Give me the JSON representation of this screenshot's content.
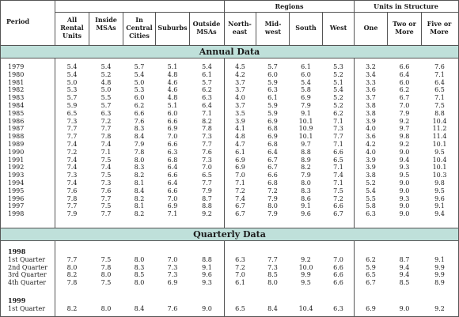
{
  "header": {
    "period": "Period",
    "regions": "Regions",
    "units_in_structure": "Units in Structure",
    "columns": [
      "All Rental Units",
      "Inside MSAs",
      "In Central Cities",
      "Suburbs",
      "Outside MSAs",
      "North-east",
      "Mid-west",
      "South",
      "West",
      "One",
      "Two or More",
      "Five or More"
    ]
  },
  "sections": {
    "annual_title": "Annual Data",
    "quarterly_title": "Quarterly Data"
  },
  "annual_rows": [
    {
      "period": "1979",
      "values": [
        "5.4",
        "5.4",
        "5.7",
        "5.1",
        "5.4",
        "4.5",
        "5.7",
        "6.1",
        "5.3",
        "3.2",
        "6.6",
        "7.6"
      ]
    },
    {
      "period": "1980",
      "values": [
        "5.4",
        "5.2",
        "5.4",
        "4.8",
        "6.1",
        "4.2",
        "6.0",
        "6.0",
        "5.2",
        "3.4",
        "6.4",
        "7.1"
      ]
    },
    {
      "period": "1981",
      "values": [
        "5.0",
        "4.8",
        "5.0",
        "4.6",
        "5.7",
        "3.7",
        "5.9",
        "5.4",
        "5.1",
        "3.3",
        "6.0",
        "6.4"
      ]
    },
    {
      "period": "1982",
      "values": [
        "5.3",
        "5.0",
        "5.3",
        "4.6",
        "6.2",
        "3.7",
        "6.3",
        "5.8",
        "5.4",
        "3.6",
        "6.2",
        "6.5"
      ]
    },
    {
      "period": "1983",
      "values": [
        "5.7",
        "5.5",
        "6.0",
        "4.8",
        "6.3",
        "4.0",
        "6.1",
        "6.9",
        "5.2",
        "3.7",
        "6.7",
        "7.1"
      ]
    },
    {
      "period": "1984",
      "values": [
        "5.9",
        "5.7",
        "6.2",
        "5.1",
        "6.4",
        "3.7",
        "5.9",
        "7.9",
        "5.2",
        "3.8",
        "7.0",
        "7.5"
      ]
    },
    {
      "period": "1985",
      "values": [
        "6.5",
        "6.3",
        "6.6",
        "6.0",
        "7.1",
        "3.5",
        "5.9",
        "9.1",
        "6.2",
        "3.8",
        "7.9",
        "8.8"
      ]
    },
    {
      "period": "1986",
      "values": [
        "7.3",
        "7.2",
        "7.6",
        "6.6",
        "8.2",
        "3.9",
        "6.9",
        "10.1",
        "7.1",
        "3.9",
        "9.2",
        "10.4"
      ]
    },
    {
      "period": "1987",
      "values": [
        "7.7",
        "7.7",
        "8.3",
        "6.9",
        "7.8",
        "4.1",
        "6.8",
        "10.9",
        "7.3",
        "4.0",
        "9.7",
        "11.2"
      ]
    },
    {
      "period": "1988",
      "values": [
        "7.7",
        "7.8",
        "8.4",
        "7.0",
        "7.3",
        "4.8",
        "6.9",
        "10.1",
        "7.7",
        "3.6",
        "9.8",
        "11.4"
      ]
    },
    {
      "period": "1989",
      "values": [
        "7.4",
        "7.4",
        "7.9",
        "6.6",
        "7.7",
        "4.7",
        "6.8",
        "9.7",
        "7.1",
        "4.2",
        "9.2",
        "10.1"
      ]
    },
    {
      "period": "1990",
      "values": [
        "7.2",
        "7.1",
        "7.8",
        "6.3",
        "7.6",
        "6.1",
        "6.4",
        "8.8",
        "6.6",
        "4.0",
        "9.0",
        "9.5"
      ]
    },
    {
      "period": "1991",
      "values": [
        "7.4",
        "7.5",
        "8.0",
        "6.8",
        "7.3",
        "6.9",
        "6.7",
        "8.9",
        "6.5",
        "3.9",
        "9.4",
        "10.4"
      ]
    },
    {
      "period": "1992",
      "values": [
        "7.4",
        "7.4",
        "8.3",
        "6.4",
        "7.0",
        "6.9",
        "6.7",
        "8.2",
        "7.1",
        "3.9",
        "9.3",
        "10.1"
      ]
    },
    {
      "period": "1993",
      "values": [
        "7.3",
        "7.5",
        "8.2",
        "6.6",
        "6.5",
        "7.0",
        "6.6",
        "7.9",
        "7.4",
        "3.8",
        "9.5",
        "10.3"
      ]
    },
    {
      "period": "1994",
      "values": [
        "7.4",
        "7.3",
        "8.1",
        "6.4",
        "7.7",
        "7.1",
        "6.8",
        "8.0",
        "7.1",
        "5.2",
        "9.0",
        "9.8"
      ]
    },
    {
      "period": "1995",
      "values": [
        "7.6",
        "7.6",
        "8.4",
        "6.6",
        "7.9",
        "7.2",
        "7.2",
        "8.3",
        "7.5",
        "5.4",
        "9.0",
        "9.5"
      ]
    },
    {
      "period": "1996",
      "values": [
        "7.8",
        "7.7",
        "8.2",
        "7.0",
        "8.7",
        "7.4",
        "7.9",
        "8.6",
        "7.2",
        "5.5",
        "9.3",
        "9.6"
      ]
    },
    {
      "period": "1997",
      "values": [
        "7.7",
        "7.5",
        "8.1",
        "6.9",
        "8.8",
        "6.7",
        "8.0",
        "9.1",
        "6.6",
        "5.8",
        "9.0",
        "9.1"
      ]
    },
    {
      "period": "1998",
      "values": [
        "7.9",
        "7.7",
        "8.2",
        "7.1",
        "9.2",
        "6.7",
        "7.9",
        "9.6",
        "6.7",
        "6.3",
        "9.0",
        "9.4"
      ]
    }
  ],
  "quarterly_groups": [
    {
      "year": "1998",
      "rows": [
        {
          "period": "1st Quarter",
          "values": [
            "7.7",
            "7.5",
            "8.0",
            "7.0",
            "8.8",
            "6.3",
            "7.7",
            "9.2",
            "7.0",
            "6.2",
            "8.7",
            "9.1"
          ]
        },
        {
          "period": "2nd Quarter",
          "values": [
            "8.0",
            "7.8",
            "8.3",
            "7.3",
            "9.1",
            "7.2",
            "7.3",
            "10.0",
            "6.6",
            "5.9",
            "9.4",
            "9.9"
          ]
        },
        {
          "period": "3rd Quarter",
          "values": [
            "8.2",
            "8.0",
            "8.5",
            "7.3",
            "9.6",
            "7.0",
            "8.5",
            "9.9",
            "6.6",
            "6.5",
            "9.4",
            "9.9"
          ]
        },
        {
          "period": "4th Quarter",
          "values": [
            "7.8",
            "7.5",
            "8.0",
            "6.9",
            "9.3",
            "6.1",
            "8.0",
            "9.5",
            "6.6",
            "6.7",
            "8.5",
            "8.9"
          ]
        }
      ]
    },
    {
      "year": "1999",
      "rows": [
        {
          "period": "1st Quarter",
          "values": [
            "8.2",
            "8.0",
            "8.4",
            "7.6",
            "9.0",
            "6.5",
            "8.4",
            "10.4",
            "6.3",
            "6.9",
            "9.0",
            "9.2"
          ]
        }
      ]
    }
  ]
}
